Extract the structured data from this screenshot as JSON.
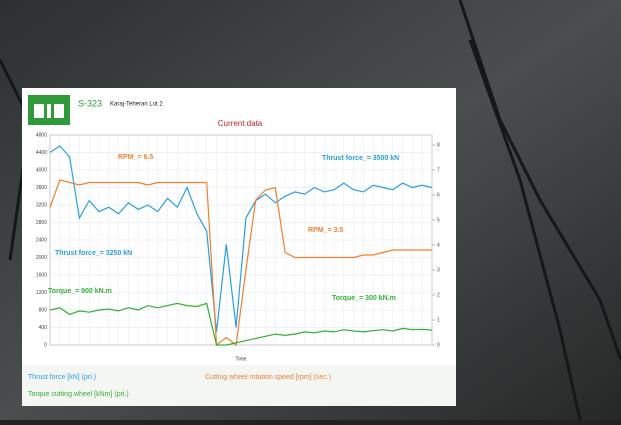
{
  "header": {
    "code": "S-323",
    "project": "Karaj-Teheran Lot 2"
  },
  "chart_data": {
    "type": "line",
    "title": "Current data",
    "x_label": "Time",
    "categories": [
      null,
      null,
      null,
      null,
      null,
      null,
      null,
      null,
      null,
      null,
      null,
      null,
      null,
      null,
      null,
      null,
      null,
      null,
      null,
      null,
      null,
      null,
      null,
      null,
      null,
      null,
      null,
      null,
      null,
      null,
      null,
      null,
      null,
      null,
      null,
      null,
      null,
      null,
      null,
      null
    ],
    "ylim": [
      0,
      4800
    ],
    "yticks": [
      0,
      400,
      800,
      1200,
      1600,
      2000,
      2400,
      2800,
      3200,
      3600,
      4000,
      4400,
      4800
    ],
    "y2lim": [
      0,
      8.4
    ],
    "y2ticks": [
      0,
      1,
      2,
      3,
      4,
      5,
      6,
      7,
      8
    ],
    "grid": true,
    "series": [
      {
        "name": "Thrust force [kN] (pri.)",
        "color": "#2a9fe0",
        "values": [
          4400,
          4550,
          4300,
          2900,
          3300,
          3050,
          3150,
          3000,
          3250,
          3100,
          3200,
          3050,
          3350,
          3150,
          3600,
          3000,
          2600,
          300,
          2300,
          400,
          2900,
          3300,
          3450,
          3250,
          3400,
          3500,
          3450,
          3600,
          3500,
          3550,
          3700,
          3550,
          3500,
          3650,
          3600,
          3550,
          3700,
          3600,
          3650,
          3600
        ]
      },
      {
        "name": "Cutting wheel rotation speed [rpm] (sec.)",
        "color": "#f08030",
        "axis": "y2",
        "values": [
          5.5,
          6.6,
          6.5,
          6.4,
          6.5,
          6.5,
          6.5,
          6.5,
          6.5,
          6.5,
          6.4,
          6.5,
          6.5,
          6.5,
          6.5,
          6.5,
          6.5,
          0,
          0.3,
          0,
          3,
          5.8,
          6.2,
          6.3,
          3.7,
          3.5,
          3.5,
          3.5,
          3.5,
          3.5,
          3.5,
          3.5,
          3.6,
          3.6,
          3.7,
          3.8,
          3.8,
          3.8,
          3.8,
          3.8
        ]
      },
      {
        "name": "Torque cutting wheel [kNm] (pri.)",
        "color": "#34b034",
        "values": [
          800,
          850,
          700,
          780,
          750,
          800,
          820,
          780,
          850,
          800,
          900,
          850,
          900,
          950,
          900,
          880,
          950,
          0,
          0,
          50,
          100,
          150,
          200,
          250,
          220,
          250,
          300,
          280,
          320,
          300,
          350,
          320,
          300,
          330,
          350,
          320,
          380,
          350,
          360,
          340
        ]
      }
    ],
    "annotations": [
      {
        "text": "RPM_= 6.5",
        "color": "#f08030"
      },
      {
        "text": "Thrust force_= 3500 kN",
        "color": "#2a9fe0"
      },
      {
        "text": "Thrust force_= 3250 kN",
        "color": "#2a9fe0"
      },
      {
        "text": "RPM_= 3.5",
        "color": "#f08030"
      },
      {
        "text": "Torque_= 900 kN.m",
        "color": "#34b034"
      },
      {
        "text": "Torque_= 300 kN.m",
        "color": "#34b034"
      }
    ]
  }
}
